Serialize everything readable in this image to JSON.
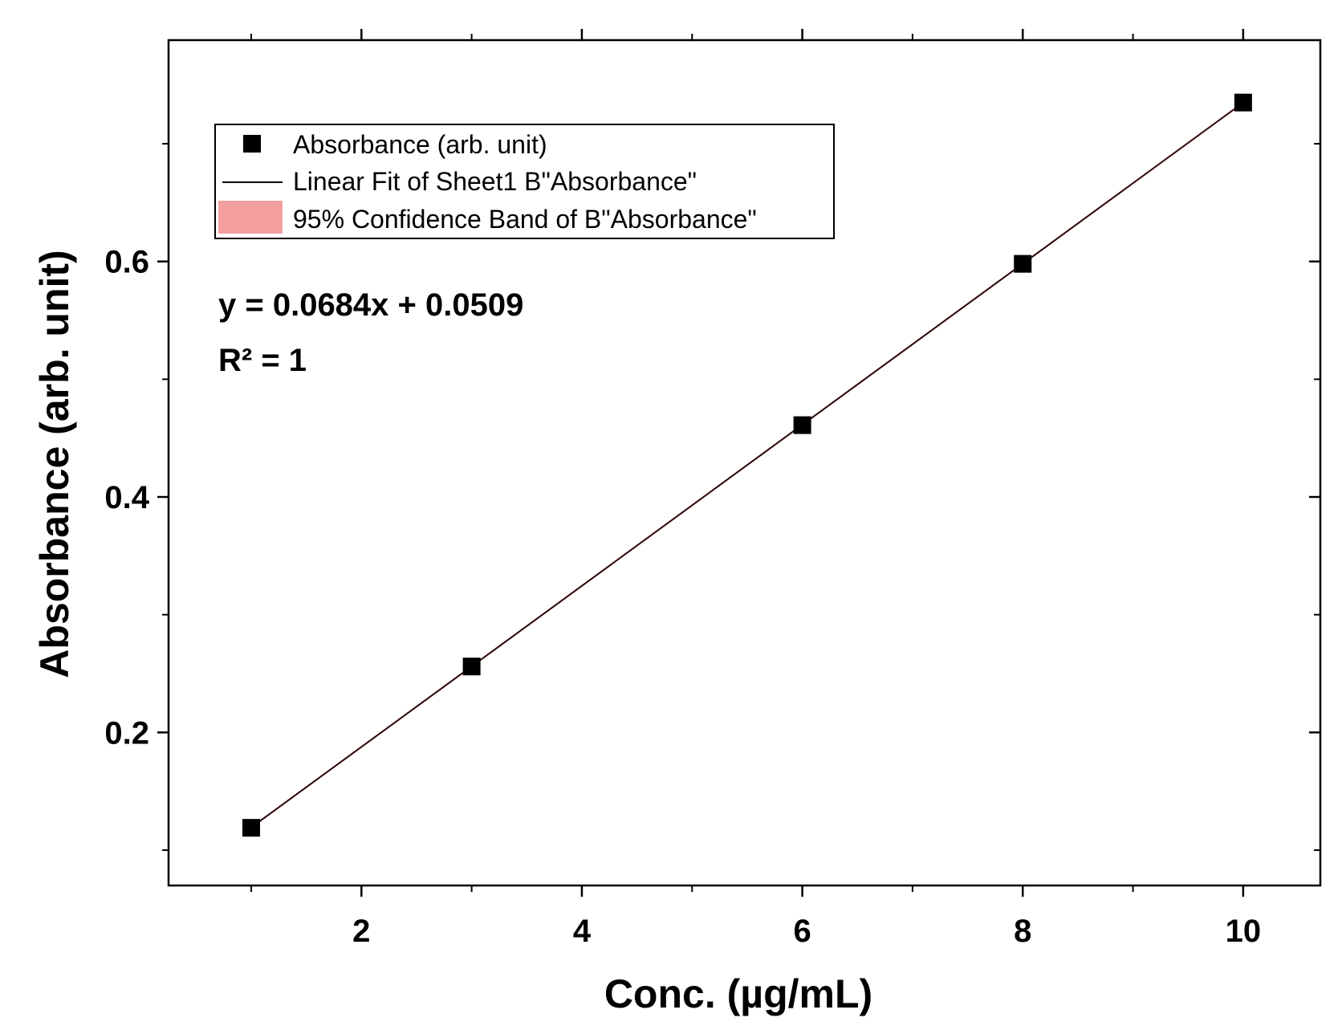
{
  "chart_data": {
    "type": "scatter",
    "xlabel": "Conc. (µg/mL)",
    "ylabel": "Absorbance (arb. unit)",
    "xlim": [
      0.25,
      10.7
    ],
    "ylim": [
      0.07,
      0.788
    ],
    "x_ticks_major": [
      2,
      4,
      6,
      8,
      10
    ],
    "x_ticks_minor": [
      1,
      3,
      5,
      7,
      9
    ],
    "y_ticks_major": [
      0.2,
      0.4,
      0.6
    ],
    "y_ticks_minor": [
      0.1,
      0.3,
      0.5,
      0.7
    ],
    "x_tick_labels": [
      "2",
      "4",
      "6",
      "8",
      "10"
    ],
    "y_tick_labels": [
      "0.2",
      "0.4",
      "0.6"
    ],
    "grid": false,
    "legend_position": "top-left",
    "series": [
      {
        "name": "Absorbance (arb. unit)",
        "kind": "points",
        "marker": "square",
        "color": "#000000",
        "x": [
          1,
          3,
          6,
          8,
          10
        ],
        "y": [
          0.119,
          0.256,
          0.461,
          0.598,
          0.735
        ]
      },
      {
        "name": "Linear Fit of Sheet1 B\"Absorbance\"",
        "kind": "line",
        "color": "#000000",
        "slope": 0.0684,
        "intercept": 0.0509,
        "x_range": [
          1,
          10
        ]
      },
      {
        "name": "95% Confidence Band of B\"Absorbance\"",
        "kind": "band",
        "color": "#f4a0a0"
      }
    ],
    "annotations": {
      "equation": "y = 0.0684x + 0.0509",
      "r_squared": "R² = 1"
    }
  }
}
